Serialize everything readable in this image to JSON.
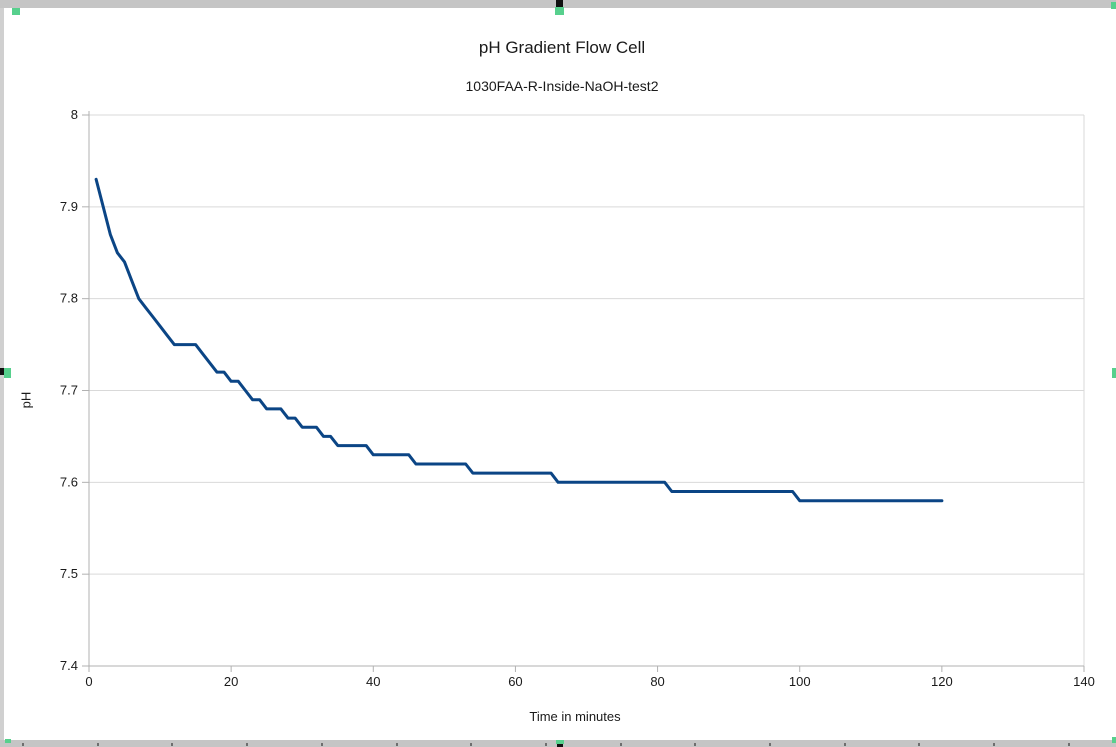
{
  "app": {
    "frame_color": "#c5c5c5",
    "selection_handle_color": "#57d08d"
  },
  "chart_data": {
    "type": "line",
    "title": "pH Gradient Flow Cell",
    "subtitle": "1030FAA-R-Inside-NaOH-test2",
    "xlabel": "Time in minutes",
    "ylabel": "pH",
    "xlim": [
      0,
      140
    ],
    "ylim": [
      7.4,
      8.0
    ],
    "x_ticks": [
      0,
      20,
      40,
      60,
      80,
      100,
      120,
      140
    ],
    "x_tick_labels": [
      "0",
      "20",
      "40",
      "60",
      "80",
      "100",
      "120",
      "140"
    ],
    "y_ticks": [
      8.0,
      7.9,
      7.8,
      7.7,
      7.6,
      7.5,
      7.4
    ],
    "y_tick_labels": [
      "8",
      "7.9",
      "7.8",
      "7.7",
      "7.6",
      "7.5",
      "7.4"
    ],
    "grid": "horizontal",
    "legend": "none",
    "colors": {
      "line": "#0b4585",
      "gridline": "#d9d9d9",
      "axis": "#b1b1b1",
      "text": "#1a1a1a"
    },
    "series": [
      {
        "x": [
          1,
          2,
          3,
          4,
          5,
          6,
          7,
          8,
          9,
          10,
          11,
          12,
          13,
          14,
          15,
          16,
          17,
          18,
          19,
          20,
          21,
          22,
          23,
          24,
          25,
          26,
          27,
          28,
          29,
          30,
          31,
          32,
          33,
          34,
          35,
          36,
          37,
          38,
          39,
          40,
          41,
          42,
          43,
          44,
          45,
          46,
          47,
          48,
          49,
          50,
          51,
          52,
          53,
          54,
          55,
          56,
          57,
          58,
          59,
          60,
          61,
          62,
          63,
          64,
          65,
          66,
          67,
          68,
          69,
          70,
          71,
          72,
          73,
          74,
          75,
          76,
          77,
          78,
          79,
          80,
          81,
          82,
          83,
          84,
          85,
          86,
          87,
          88,
          89,
          90,
          91,
          92,
          93,
          94,
          95,
          96,
          97,
          98,
          99,
          100,
          101,
          102,
          103,
          104,
          105,
          106,
          107,
          108,
          109,
          110,
          111,
          112,
          113,
          114,
          115,
          116,
          117,
          118,
          119,
          120
        ],
        "y": [
          7.93,
          7.9,
          7.87,
          7.85,
          7.84,
          7.82,
          7.8,
          7.79,
          7.78,
          7.77,
          7.76,
          7.75,
          7.75,
          7.75,
          7.75,
          7.74,
          7.73,
          7.72,
          7.72,
          7.71,
          7.71,
          7.7,
          7.69,
          7.69,
          7.68,
          7.68,
          7.68,
          7.67,
          7.67,
          7.66,
          7.66,
          7.66,
          7.65,
          7.65,
          7.64,
          7.64,
          7.64,
          7.64,
          7.64,
          7.63,
          7.63,
          7.63,
          7.63,
          7.63,
          7.63,
          7.62,
          7.62,
          7.62,
          7.62,
          7.62,
          7.62,
          7.62,
          7.62,
          7.61,
          7.61,
          7.61,
          7.61,
          7.61,
          7.61,
          7.61,
          7.61,
          7.61,
          7.61,
          7.61,
          7.61,
          7.6,
          7.6,
          7.6,
          7.6,
          7.6,
          7.6,
          7.6,
          7.6,
          7.6,
          7.6,
          7.6,
          7.6,
          7.6,
          7.6,
          7.6,
          7.6,
          7.59,
          7.59,
          7.59,
          7.59,
          7.59,
          7.59,
          7.59,
          7.59,
          7.59,
          7.59,
          7.59,
          7.59,
          7.59,
          7.59,
          7.59,
          7.59,
          7.59,
          7.59,
          7.58,
          7.58,
          7.58,
          7.58,
          7.58,
          7.58,
          7.58,
          7.58,
          7.58,
          7.58,
          7.58,
          7.58,
          7.58,
          7.58,
          7.58,
          7.58,
          7.58,
          7.58,
          7.58,
          7.58,
          7.58
        ]
      }
    ]
  }
}
